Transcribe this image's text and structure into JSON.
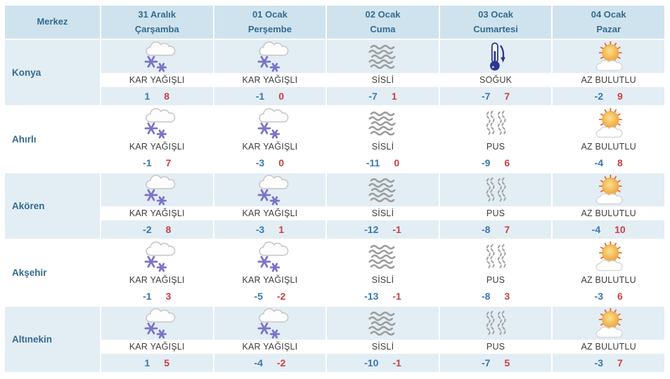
{
  "table": {
    "header": {
      "merkez": "Merkez",
      "days": [
        {
          "date": "31 Aralık",
          "day": "Çarşamba"
        },
        {
          "date": "01 Ocak",
          "day": "Perşembe"
        },
        {
          "date": "02 Ocak",
          "day": "Cuma"
        },
        {
          "date": "03 Ocak",
          "day": "Cumartesi"
        },
        {
          "date": "04 Ocak",
          "day": "Pazar"
        }
      ]
    },
    "rows": [
      {
        "city": "Konya",
        "days": [
          {
            "icon": "snow",
            "condition": "KAR YAĞIŞLI",
            "min": 1,
            "max": 8
          },
          {
            "icon": "snow",
            "condition": "KAR YAĞIŞLI",
            "min": -1,
            "max": 0
          },
          {
            "icon": "fog",
            "condition": "SİSLİ",
            "min": -7,
            "max": 1
          },
          {
            "icon": "cold",
            "condition": "SOĞUK",
            "min": -7,
            "max": 7
          },
          {
            "icon": "partly-cloudy",
            "condition": "AZ BULUTLU",
            "min": -2,
            "max": 9
          }
        ]
      },
      {
        "city": "Ahırlı",
        "days": [
          {
            "icon": "snow",
            "condition": "KAR YAĞIŞLI",
            "min": -1,
            "max": 7
          },
          {
            "icon": "snow",
            "condition": "KAR YAĞIŞLI",
            "min": -3,
            "max": 0
          },
          {
            "icon": "fog",
            "condition": "SİSLİ",
            "min": -11,
            "max": 0
          },
          {
            "icon": "mist",
            "condition": "PUS",
            "min": -9,
            "max": 6
          },
          {
            "icon": "partly-cloudy",
            "condition": "AZ BULUTLU",
            "min": -4,
            "max": 8
          }
        ]
      },
      {
        "city": "Akören",
        "days": [
          {
            "icon": "snow",
            "condition": "KAR YAĞIŞLI",
            "min": -2,
            "max": 8
          },
          {
            "icon": "snow",
            "condition": "KAR YAĞIŞLI",
            "min": -3,
            "max": 1
          },
          {
            "icon": "fog",
            "condition": "SİSLİ",
            "min": -12,
            "max": -1
          },
          {
            "icon": "mist",
            "condition": "PUS",
            "min": -8,
            "max": 7
          },
          {
            "icon": "partly-cloudy",
            "condition": "AZ BULUTLU",
            "min": -4,
            "max": 10
          }
        ]
      },
      {
        "city": "Akşehir",
        "days": [
          {
            "icon": "snow",
            "condition": "KAR YAĞIŞLI",
            "min": -1,
            "max": 3
          },
          {
            "icon": "snow",
            "condition": "KAR YAĞIŞLI",
            "min": -5,
            "max": -2
          },
          {
            "icon": "fog",
            "condition": "SİSLİ",
            "min": -13,
            "max": -1
          },
          {
            "icon": "mist",
            "condition": "PUS",
            "min": -8,
            "max": 3
          },
          {
            "icon": "partly-cloudy",
            "condition": "AZ BULUTLU",
            "min": -3,
            "max": 6
          }
        ]
      },
      {
        "city": "Altınekin",
        "days": [
          {
            "icon": "snow",
            "condition": "KAR YAĞIŞLI",
            "min": 1,
            "max": 5
          },
          {
            "icon": "snow",
            "condition": "KAR YAĞIŞLI",
            "min": -4,
            "max": -2
          },
          {
            "icon": "fog",
            "condition": "SİSLİ",
            "min": -10,
            "max": -1
          },
          {
            "icon": "mist",
            "condition": "PUS",
            "min": -7,
            "max": 5
          },
          {
            "icon": "partly-cloudy",
            "condition": "AZ BULUTLU",
            "min": -3,
            "max": 7
          }
        ]
      }
    ]
  },
  "colors": {
    "header_bg": "#cfe3ee",
    "stripe_bg": "#e3edf4",
    "text_blue": "#336b8e",
    "cond_text": "#3d3d3d",
    "min_blue": "#3878b2",
    "max_red": "#c94144",
    "snowflake_purple": "#7b74c6",
    "fog_gray": "#9d9d9d",
    "thermometer_navy": "#2c3690",
    "sun_orange": "#e2672f"
  }
}
